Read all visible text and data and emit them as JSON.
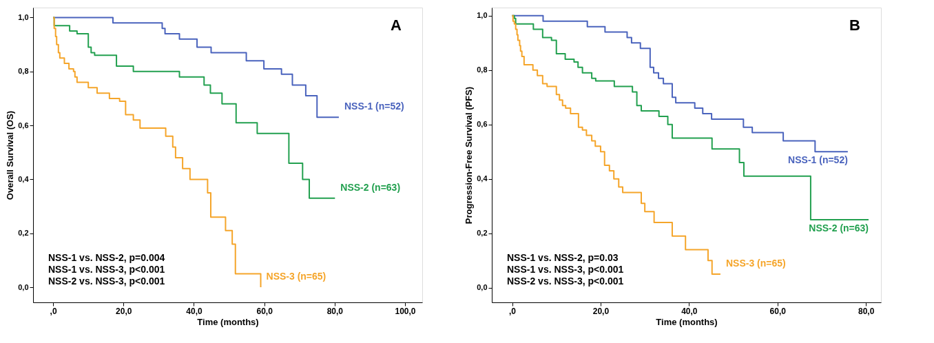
{
  "chart_data": [
    {
      "type": "step",
      "xlabel": "Time (months)",
      "ylabel": "Overall Survival (OS)",
      "xlim": [
        -5.7,
        104.9
      ],
      "ylim": [
        -0.056,
        1.037
      ],
      "xticks": [
        {
          "value": 0,
          "label": ",0"
        },
        {
          "value": 20,
          "label": "20,0"
        },
        {
          "value": 40,
          "label": "40,0"
        },
        {
          "value": 60,
          "label": "60,0"
        },
        {
          "value": 80,
          "label": "80,0"
        },
        {
          "value": 100,
          "label": "100,0"
        }
      ],
      "yticks": [
        {
          "value": 0,
          "label": "0,0"
        },
        {
          "value": 0.2,
          "label": "0,2"
        },
        {
          "value": 0.4,
          "label": "0,4"
        },
        {
          "value": 0.6,
          "label": "0,6"
        },
        {
          "value": 0.8,
          "label": "0,8"
        },
        {
          "value": 1,
          "label": "1,0"
        }
      ],
      "grid": false,
      "legend": false,
      "line_style": "solid",
      "marker": "none",
      "annotations": [
        "A",
        "NSS-1 vs. NSS-2, p=0.004",
        "NSS-1 vs. NSS-3, p<0.001",
        "NSS-2 vs. NSS-3, p<0.001"
      ],
      "series": [
        {
          "name": "NSS-1 (n=52)",
          "color": "#4a63bd",
          "x": [
            0,
            17,
            31,
            31.8,
            35.9,
            40.9,
            44.9,
            54.9,
            59.9,
            64.9,
            68,
            71.8,
            75,
            81.2
          ],
          "values": [
            1,
            0.98,
            0.96,
            0.94,
            0.92,
            0.89,
            0.87,
            0.84,
            0.81,
            0.79,
            0.75,
            0.71,
            0.63,
            0.63
          ]
        },
        {
          "name": "NSS-2 (n=63)",
          "color": "#22a04f",
          "x": [
            0,
            0.3,
            4.7,
            6.8,
            10,
            10.8,
            11.8,
            18,
            22.8,
            35.9,
            42.9,
            44.7,
            48,
            52,
            58,
            67,
            70.9,
            72.8,
            80.1
          ],
          "values": [
            1,
            0.97,
            0.95,
            0.94,
            0.89,
            0.87,
            0.86,
            0.82,
            0.8,
            0.78,
            0.75,
            0.72,
            0.68,
            0.61,
            0.57,
            0.46,
            0.4,
            0.33,
            0.33
          ]
        },
        {
          "name": "NSS-3 (n=65)",
          "color": "#f5a52a",
          "x": [
            0,
            0.3,
            0.7,
            1,
            1.5,
            1.9,
            3.2,
            4.5,
            5.8,
            6.2,
            6.8,
            10,
            12.5,
            16,
            18.9,
            20.6,
            22.8,
            24.7,
            32,
            34,
            34.8,
            36.8,
            38.9,
            43.9,
            44.8,
            49,
            50.9,
            51.8,
            59
          ],
          "values": [
            1,
            0.96,
            0.93,
            0.9,
            0.87,
            0.85,
            0.83,
            0.81,
            0.8,
            0.78,
            0.76,
            0.74,
            0.72,
            0.7,
            0.69,
            0.64,
            0.62,
            0.59,
            0.56,
            0.52,
            0.48,
            0.44,
            0.4,
            0.35,
            0.26,
            0.21,
            0.16,
            0.05,
            0
          ]
        }
      ]
    },
    {
      "type": "step",
      "xlabel": "Time (months)",
      "ylabel": "Progression-Free Survival (PFS)",
      "xlim": [
        -4.6,
        83.4
      ],
      "ylim": [
        -0.054,
        1.03
      ],
      "xticks": [
        {
          "value": 0,
          "label": ",0"
        },
        {
          "value": 20,
          "label": "20,0"
        },
        {
          "value": 40,
          "label": "40,0"
        },
        {
          "value": 60,
          "label": "60,0"
        },
        {
          "value": 80,
          "label": "80,0"
        }
      ],
      "yticks": [
        {
          "value": 0,
          "label": "0,0"
        },
        {
          "value": 0.2,
          "label": "0,2"
        },
        {
          "value": 0.4,
          "label": "0,4"
        },
        {
          "value": 0.6,
          "label": "0,6"
        },
        {
          "value": 0.8,
          "label": "0,8"
        },
        {
          "value": 1,
          "label": "1,0"
        }
      ],
      "grid": false,
      "legend": false,
      "line_style": "solid",
      "marker": "none",
      "annotations": [
        "B",
        "NSS-1 vs. NSS-2, p=0.03",
        "NSS-1 vs. NSS-3, p<0.001",
        "NSS-2 vs. NSS-3, p<0.001"
      ],
      "series": [
        {
          "name": "NSS-1 (n=52)",
          "color": "#4a63bd",
          "x": [
            0,
            7,
            17,
            21,
            26,
            27,
            29,
            31.2,
            32,
            33.1,
            34.2,
            36.2,
            37,
            41.3,
            43.1,
            45.1,
            52.3,
            54.3,
            61.3,
            68.5,
            75.9
          ],
          "values": [
            1,
            0.98,
            0.96,
            0.94,
            0.92,
            0.9,
            0.88,
            0.81,
            0.79,
            0.77,
            0.75,
            0.7,
            0.68,
            0.66,
            0.64,
            0.62,
            0.59,
            0.57,
            0.54,
            0.5,
            0.5
          ]
        },
        {
          "name": "NSS-2 (n=63)",
          "color": "#22a04f",
          "x": [
            0,
            0.5,
            0.8,
            4.8,
            6.9,
            8.9,
            10,
            12,
            14,
            14.9,
            15.9,
            18,
            18.9,
            23.1,
            27.2,
            28.2,
            29.2,
            33.2,
            35.2,
            36.2,
            45.2,
            51.4,
            52.4,
            67.5,
            80.6
          ],
          "values": [
            1,
            0.99,
            0.97,
            0.95,
            0.92,
            0.91,
            0.86,
            0.84,
            0.83,
            0.81,
            0.79,
            0.77,
            0.76,
            0.74,
            0.72,
            0.67,
            0.65,
            0.63,
            0.6,
            0.55,
            0.51,
            0.46,
            0.41,
            0.25,
            0.25
          ]
        },
        {
          "name": "NSS-3 (n=65)",
          "color": "#f5a52a",
          "x": [
            0,
            0.2,
            0.5,
            0.8,
            1.1,
            1.3,
            1.7,
            1.9,
            2.2,
            2.7,
            4.7,
            5.7,
            6.9,
            7.9,
            10,
            10.7,
            11.4,
            12.1,
            13.2,
            15,
            15.9,
            16.8,
            18,
            18.8,
            20,
            20.9,
            22,
            23,
            24.1,
            25,
            29.2,
            30,
            32.1,
            36.2,
            39.2,
            44.3,
            45.2,
            47.1
          ],
          "values": [
            1,
            0.98,
            0.97,
            0.95,
            0.93,
            0.91,
            0.89,
            0.87,
            0.85,
            0.82,
            0.8,
            0.78,
            0.75,
            0.74,
            0.71,
            0.69,
            0.67,
            0.66,
            0.64,
            0.59,
            0.58,
            0.56,
            0.54,
            0.52,
            0.5,
            0.45,
            0.43,
            0.4,
            0.37,
            0.35,
            0.31,
            0.28,
            0.24,
            0.19,
            0.14,
            0.1,
            0.05,
            0.05
          ]
        }
      ]
    }
  ]
}
